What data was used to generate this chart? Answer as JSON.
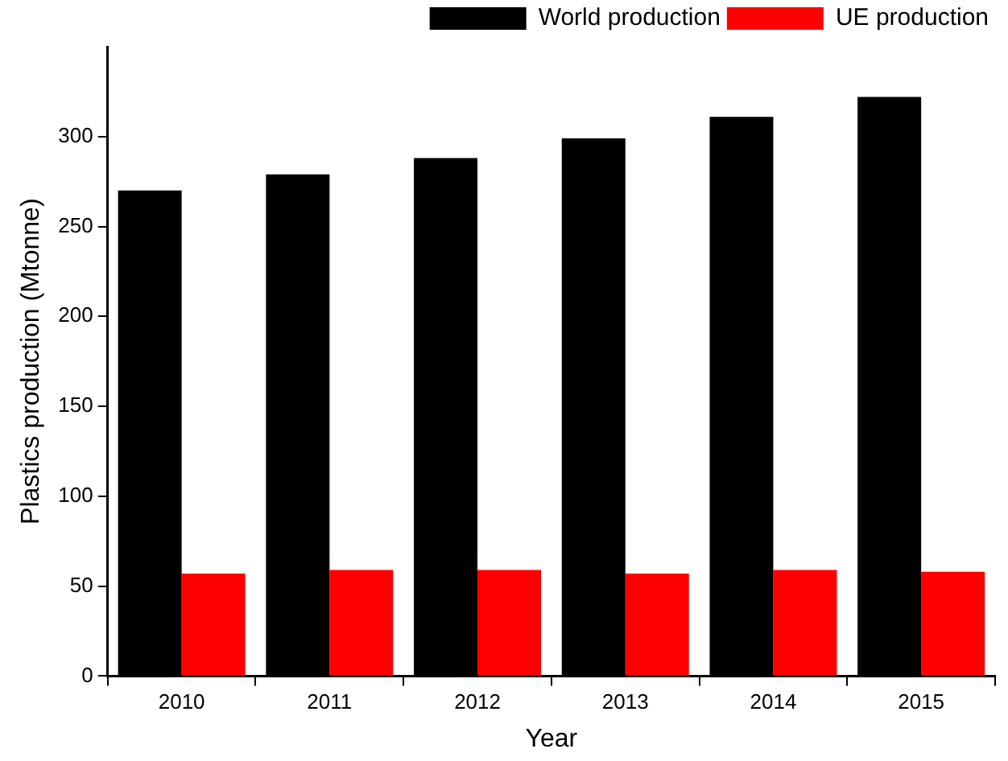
{
  "chart_data": {
    "type": "bar",
    "xlabel": "Year",
    "ylabel": "Plastics production (Mtonne)",
    "categories": [
      "2010",
      "2011",
      "2012",
      "2013",
      "2014",
      "2015"
    ],
    "series": [
      {
        "name": "World production",
        "color": "#000000",
        "values": [
          270,
          279,
          288,
          299,
          311,
          322
        ]
      },
      {
        "name": "UE production",
        "color": "#ff0000",
        "values": [
          57,
          59,
          59,
          57,
          59,
          58
        ]
      }
    ],
    "ylim": [
      0,
      350
    ],
    "yticks": [
      0,
      50,
      100,
      150,
      200,
      250,
      300
    ],
    "grid": false,
    "legend": "top right"
  }
}
